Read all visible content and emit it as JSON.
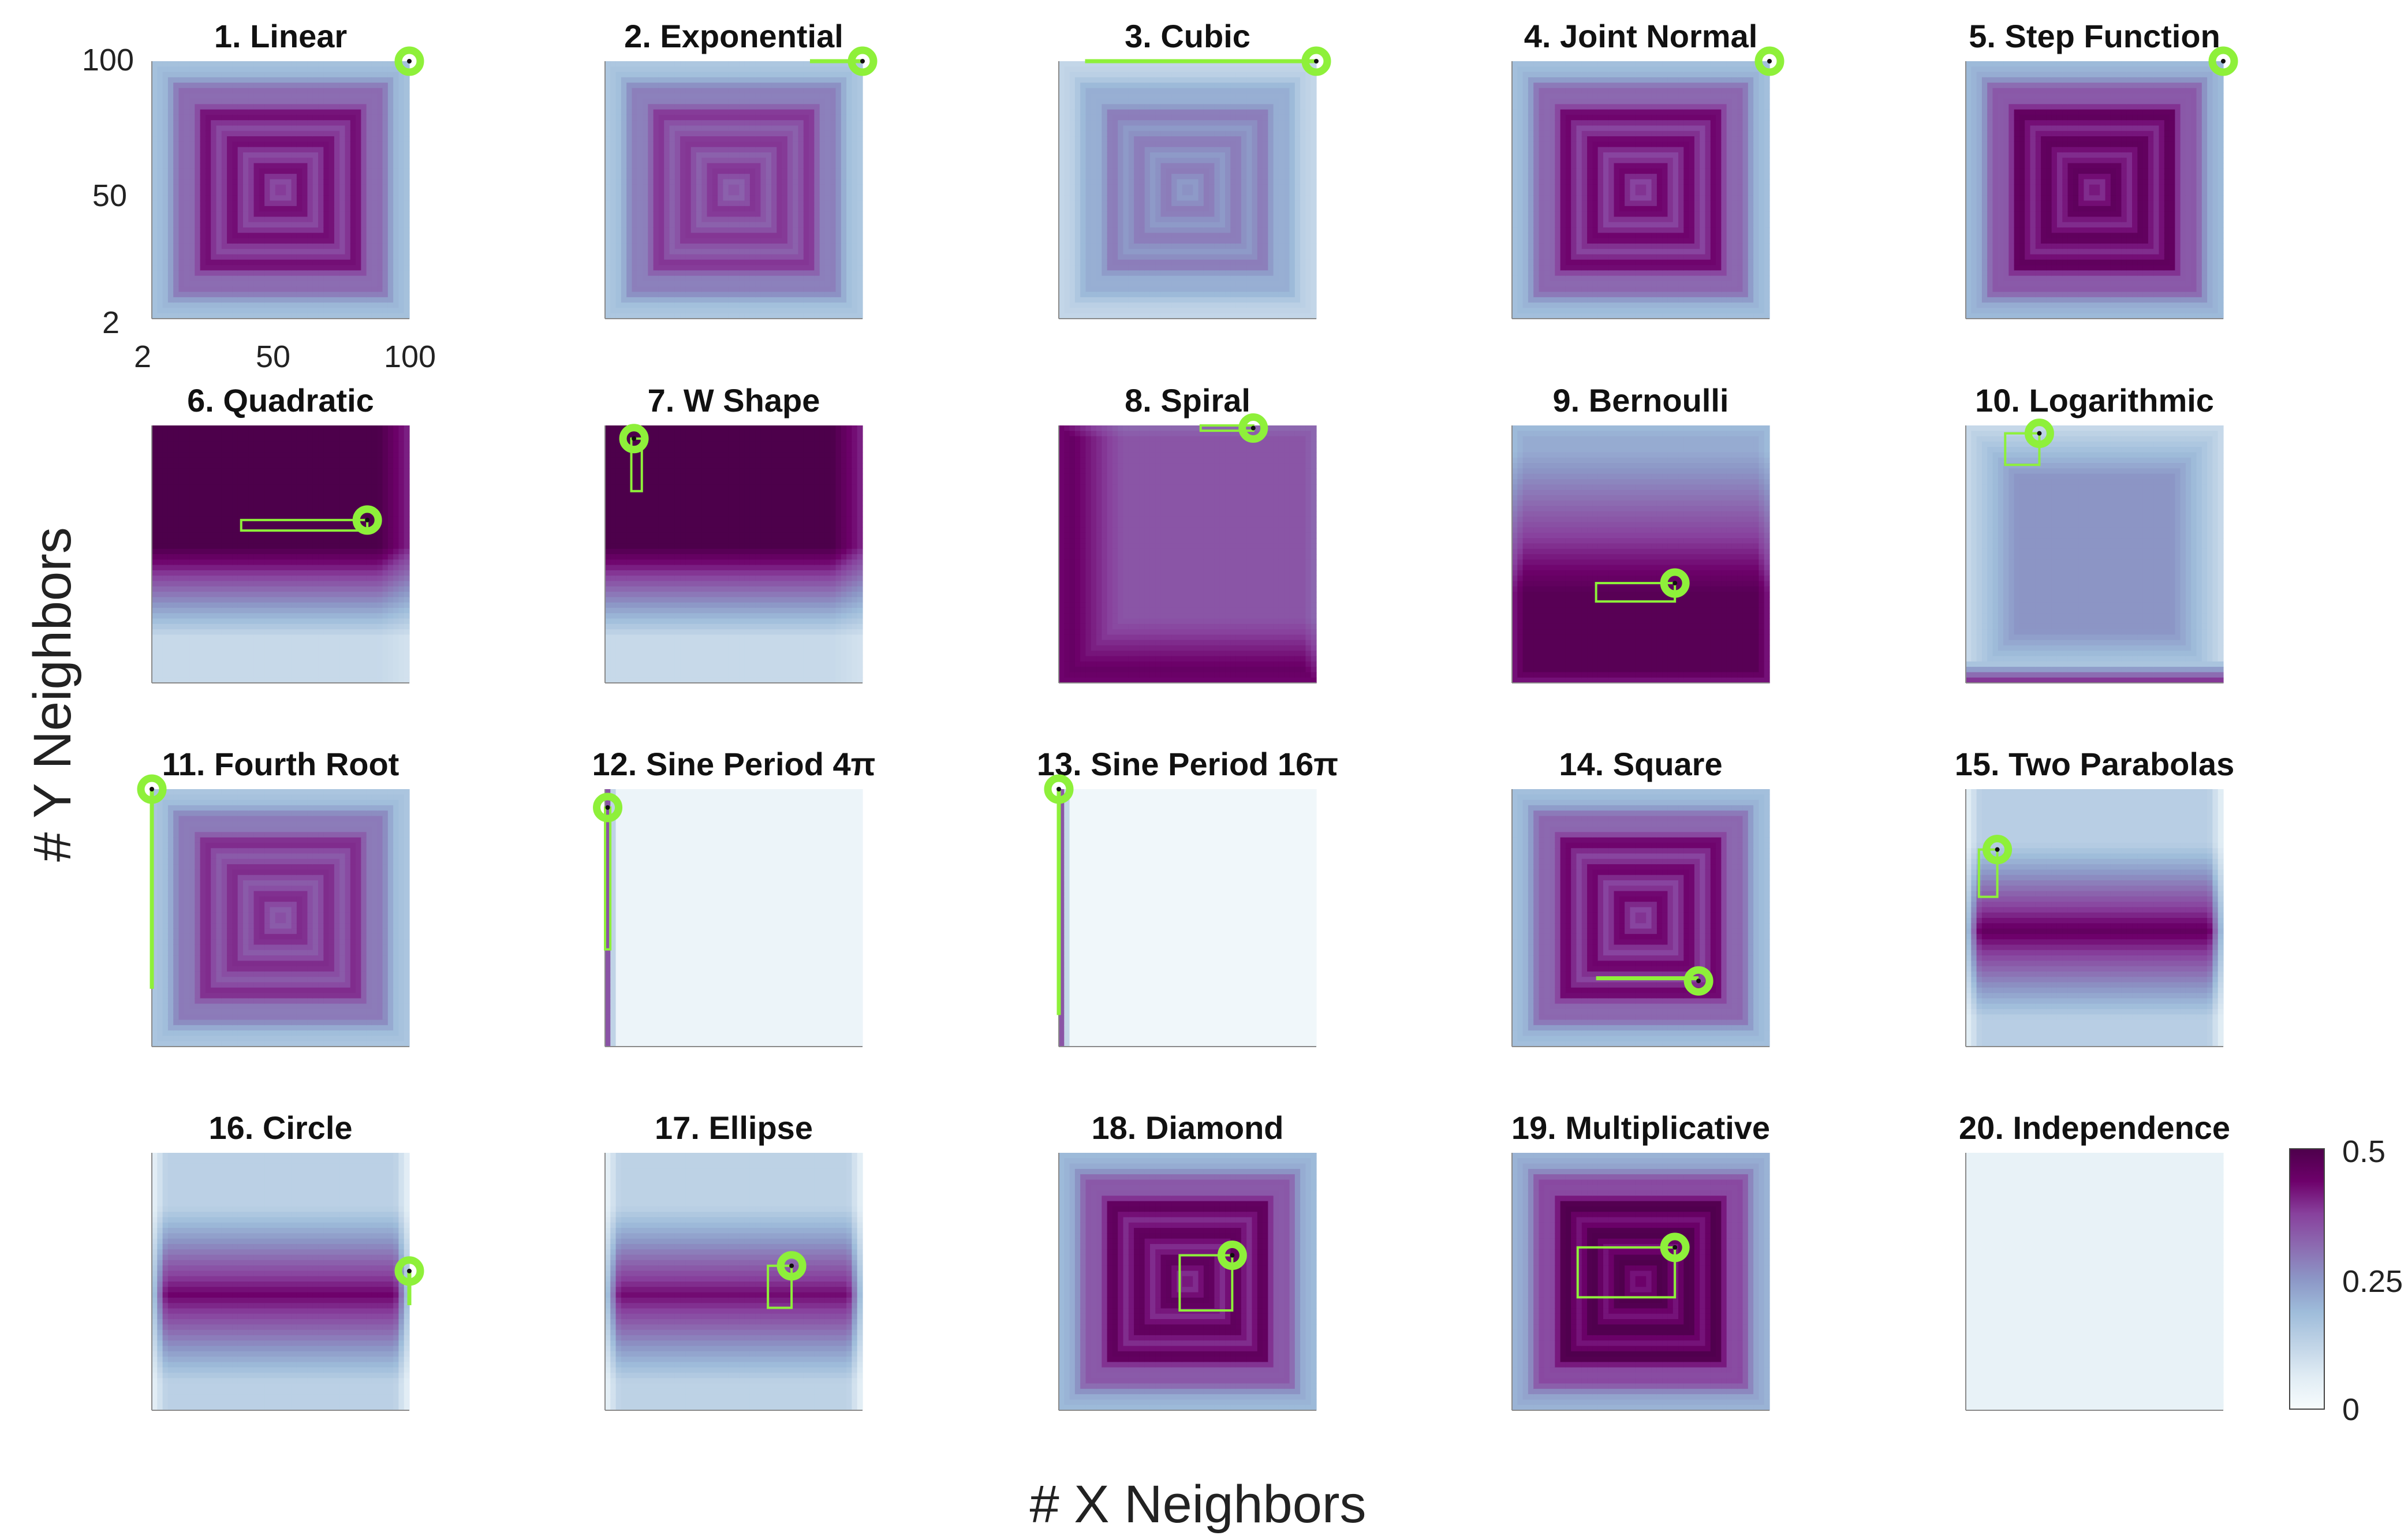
{
  "figure": {
    "xlabel": "# X Neighbors",
    "ylabel": "# Y Neighbors",
    "axis_ticks": {
      "x": [
        "2",
        "50",
        "100"
      ],
      "y": [
        "100",
        "50",
        "2"
      ]
    },
    "colorbar": {
      "range": [
        0,
        0.5
      ],
      "ticks": [
        "0.5",
        "0.25",
        "0"
      ],
      "colormap": [
        "#f7fcfd",
        "#e0ecf4",
        "#bfd3e6",
        "#9ebcda",
        "#8c96c6",
        "#8c6bb1",
        "#88419d",
        "#6e016b",
        "#4d004b"
      ]
    },
    "highlight_color": "#8ef03a"
  },
  "chart_data": {
    "type": "heatmap",
    "x_range": [
      2,
      100
    ],
    "y_range": [
      2,
      100
    ],
    "color_range": [
      0,
      0.5
    ],
    "panels": [
      {
        "title": "1. Linear",
        "level": 0.43,
        "pattern": "centered",
        "optimal": [
          100,
          100
        ],
        "region": null
      },
      {
        "title": "2. Exponential",
        "level": 0.39,
        "pattern": "centered",
        "optimal": [
          100,
          100
        ],
        "region": {
          "x": [
            80,
            100
          ],
          "y": [
            100,
            100
          ]
        }
      },
      {
        "title": "3. Cubic",
        "level": 0.29,
        "pattern": "centered",
        "optimal": [
          100,
          100
        ],
        "region": {
          "x": [
            12,
            100
          ],
          "y": [
            100,
            100
          ]
        }
      },
      {
        "title": "4. Joint Normal",
        "level": 0.44,
        "pattern": "centered",
        "optimal": [
          100,
          100
        ],
        "region": null
      },
      {
        "title": "5. Step Function",
        "level": 0.47,
        "pattern": "centered",
        "optimal": [
          100,
          100
        ],
        "region": null
      },
      {
        "title": "6. Quadratic",
        "level": 0.5,
        "pattern": "top",
        "optimal": [
          84,
          64
        ],
        "region": {
          "x": [
            36,
            84
          ],
          "y": [
            60,
            64
          ]
        }
      },
      {
        "title": "7. W Shape",
        "level": 0.5,
        "pattern": "top",
        "optimal": [
          13,
          95
        ],
        "region": {
          "x": [
            12,
            16
          ],
          "y": [
            75,
            95
          ]
        }
      },
      {
        "title": "8. Spiral",
        "level": 0.48,
        "pattern": "topleft",
        "optimal": [
          76,
          99
        ],
        "region": {
          "x": [
            56,
            76
          ],
          "y": [
            98,
            100
          ]
        }
      },
      {
        "title": "9. Bernoulli",
        "level": 0.48,
        "pattern": "bottom",
        "optimal": [
          64,
          40
        ],
        "region": {
          "x": [
            34,
            64
          ],
          "y": [
            33,
            40
          ]
        }
      },
      {
        "title": "10. Logarithmic",
        "level": 0.42,
        "pattern": "topedge",
        "optimal": [
          30,
          97
        ],
        "region": {
          "x": [
            17,
            30
          ],
          "y": [
            85,
            97
          ]
        }
      },
      {
        "title": "11. Fourth Root",
        "level": 0.4,
        "pattern": "centered",
        "optimal": [
          2,
          100
        ],
        "region": {
          "x": [
            2,
            3
          ],
          "y": [
            24,
            100
          ]
        }
      },
      {
        "title": "12. Sine Period 4π",
        "level": 0.03,
        "pattern": "leftstrip",
        "optimal": [
          3,
          93
        ],
        "region": {
          "x": [
            2,
            4
          ],
          "y": [
            39,
            93
          ]
        }
      },
      {
        "title": "13. Sine Period 16π",
        "level": 0.02,
        "pattern": "leftstrip",
        "optimal": [
          2,
          100
        ],
        "region": {
          "x": [
            2,
            3
          ],
          "y": [
            14,
            100
          ]
        }
      },
      {
        "title": "14. Square",
        "level": 0.44,
        "pattern": "centered",
        "optimal": [
          73,
          27
        ],
        "region": {
          "x": [
            34,
            73
          ],
          "y": [
            27,
            28
          ]
        }
      },
      {
        "title": "15. Two Parabolas",
        "level": 0.46,
        "pattern": "band",
        "optimal": [
          14,
          77
        ],
        "region": {
          "x": [
            7,
            14
          ],
          "y": [
            59,
            77
          ]
        }
      },
      {
        "title": "16. Circle",
        "level": 0.44,
        "pattern": "band",
        "optimal": [
          100,
          55
        ],
        "region": {
          "x": [
            100,
            100
          ],
          "y": [
            42,
            55
          ]
        }
      },
      {
        "title": "17. Ellipse",
        "level": 0.43,
        "pattern": "band",
        "optimal": [
          73,
          57
        ],
        "region": {
          "x": [
            64,
            73
          ],
          "y": [
            41,
            57
          ]
        }
      },
      {
        "title": "18. Diamond",
        "level": 0.47,
        "pattern": "centered",
        "optimal": [
          68,
          61
        ],
        "region": {
          "x": [
            48,
            68
          ],
          "y": [
            40,
            61
          ]
        }
      },
      {
        "title": "19. Multiplicative",
        "level": 0.5,
        "pattern": "centered",
        "optimal": [
          64,
          64
        ],
        "region": {
          "x": [
            27,
            64
          ],
          "y": [
            45,
            64
          ]
        }
      },
      {
        "title": "20. Independence",
        "level": 0.04,
        "pattern": "flat",
        "optimal": null,
        "region": null
      }
    ]
  }
}
